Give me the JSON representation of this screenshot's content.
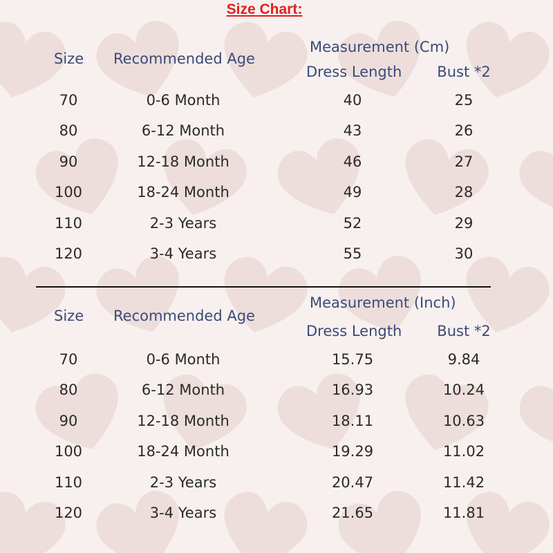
{
  "title": "Size Chart:",
  "tables": [
    {
      "headers": {
        "size": "Size",
        "age": "Recommended Age",
        "measurement": "Measurement (Cm)",
        "dress_length": "Dress Length",
        "bust": "Bust *2"
      },
      "rows": [
        {
          "size": "70",
          "age": "0-6 Month",
          "dress_length": "40",
          "bust": "25"
        },
        {
          "size": "80",
          "age": "6-12 Month",
          "dress_length": "43",
          "bust": "26"
        },
        {
          "size": "90",
          "age": "12-18 Month",
          "dress_length": "46",
          "bust": "27"
        },
        {
          "size": "100",
          "age": "18-24 Month",
          "dress_length": "49",
          "bust": "28"
        },
        {
          "size": "110",
          "age": "2-3 Years",
          "dress_length": "52",
          "bust": "29"
        },
        {
          "size": "120",
          "age": "3-4 Years",
          "dress_length": "55",
          "bust": "30"
        }
      ]
    },
    {
      "headers": {
        "size": "Size",
        "age": "Recommended Age",
        "measurement": "Measurement (Inch)",
        "dress_length": "Dress Length",
        "bust": "Bust *2"
      },
      "rows": [
        {
          "size": "70",
          "age": "0-6 Month",
          "dress_length": "15.75",
          "bust": "9.84"
        },
        {
          "size": "80",
          "age": "6-12 Month",
          "dress_length": "16.93",
          "bust": "10.24"
        },
        {
          "size": "90",
          "age": "12-18 Month",
          "dress_length": "18.11",
          "bust": "10.63"
        },
        {
          "size": "100",
          "age": "18-24 Month",
          "dress_length": "19.29",
          "bust": "11.02"
        },
        {
          "size": "110",
          "age": "2-3 Years",
          "dress_length": "20.47",
          "bust": "11.42"
        },
        {
          "size": "120",
          "age": "3-4 Years",
          "dress_length": "21.65",
          "bust": "11.81"
        }
      ]
    }
  ]
}
